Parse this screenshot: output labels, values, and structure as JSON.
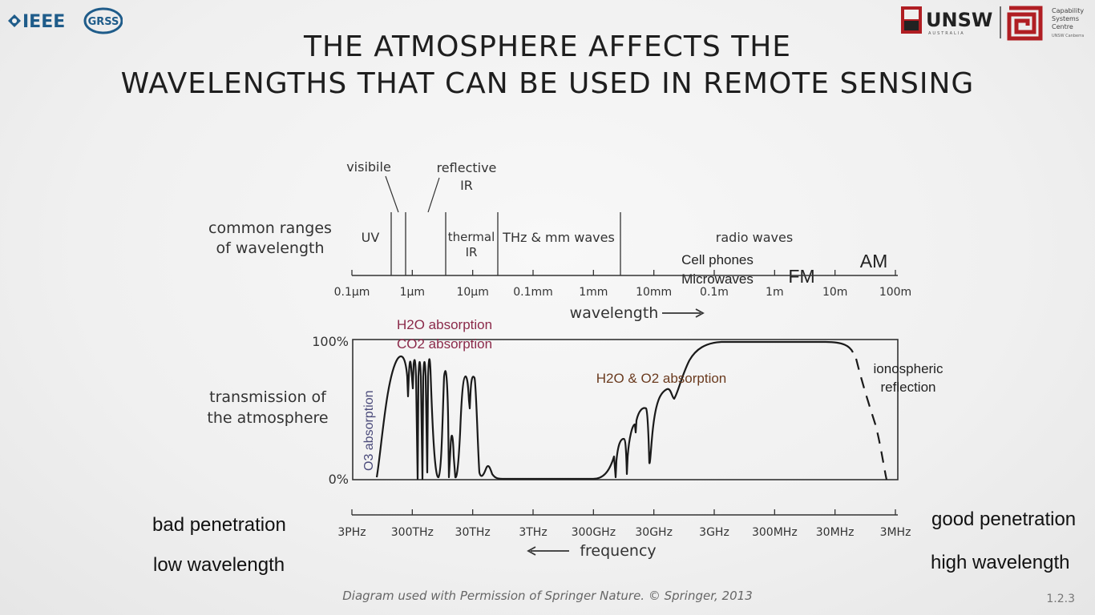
{
  "title_line1": "THE ATMOSPHERE AFFECTS THE",
  "title_line2": "WAVELENGTHS THAT CAN BE USED IN REMOTE SENSING",
  "logos": {
    "ieee": "IEEE",
    "grss": "GRSS",
    "unsw": "UNSW",
    "unsw_sub": "AUSTRALIA",
    "csc_line1": "Capability",
    "csc_line2": "Systems",
    "csc_line3": "Centre",
    "csc_line4": "UNSW Canberra"
  },
  "ranges": {
    "heading_line1": "common ranges",
    "heading_line2": "of wavelength",
    "visible": "visibile",
    "reflective_line1": "reflective",
    "reflective_line2": "IR",
    "uv": "UV",
    "thermal_line1": "thermal",
    "thermal_line2": "IR",
    "thz": "THz & mm waves",
    "radio": "radio waves",
    "cell_line1": "Cell phones",
    "cell_line2": "Microwaves",
    "fm": "FM",
    "am": "AM"
  },
  "wavelength_ticks": [
    "0.1µm",
    "1µm",
    "10µm",
    "0.1mm",
    "1mm",
    "10mm",
    "0.1m",
    "1m",
    "10m",
    "100m"
  ],
  "wavelength_label": "wavelength",
  "transmission": {
    "heading_line1": "transmission of",
    "heading_line2": "the atmosphere",
    "y_top": "100%",
    "y_bottom": "0%",
    "o3": "O3 absorption",
    "h2o_co2_line1": "H2O absorption",
    "h2o_co2_line2": "CO2 absorption",
    "h2o_o2": "H2O & O2 absorption",
    "iono_line1": "ionospheric",
    "iono_line2": "reflection",
    "colors": {
      "o3": "#4a4a7a",
      "h2o_co2": "#8b2a4a",
      "h2o_o2": "#6a3a1e"
    }
  },
  "frequency_ticks": [
    "3PHz",
    "300THz",
    "30THz",
    "3THz",
    "300GHz",
    "30GHz",
    "3GHz",
    "300MHz",
    "30MHz",
    "3MHz"
  ],
  "frequency_label": "frequency",
  "left_notes": {
    "line1": "bad penetration",
    "line2": "low wavelength"
  },
  "right_notes": {
    "line1": "good penetration",
    "line2": "high wavelength"
  },
  "credit": "Diagram used with Permission of Springer Nature. © Springer, 2013",
  "slide_number": "1.2.3"
}
